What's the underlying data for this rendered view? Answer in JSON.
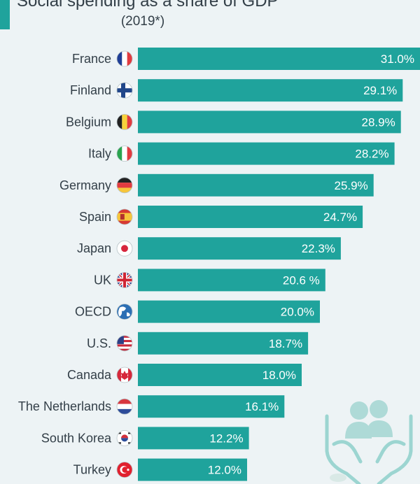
{
  "chart_data": {
    "type": "bar",
    "orientation": "horizontal",
    "title": "Social spending as a share of GDP",
    "subtitle": "(2019*)",
    "categories": [
      "France",
      "Finland",
      "Belgium",
      "Italy",
      "Germany",
      "Spain",
      "Japan",
      "UK",
      "OECD",
      "U.S.",
      "Canada",
      "The Netherlands",
      "South Korea",
      "Turkey"
    ],
    "values": [
      31.0,
      29.1,
      28.9,
      28.2,
      25.9,
      24.7,
      22.3,
      20.6,
      20.0,
      18.7,
      18.0,
      16.1,
      12.2,
      12.0
    ],
    "value_labels": [
      "31.0%",
      "29.1%",
      "28.9%",
      "28.2%",
      "25.9%",
      "24.7%",
      "22.3%",
      "20.6 %",
      "20.0%",
      "18.7%",
      "18.0%",
      "16.1%",
      "12.2%",
      "12.0%"
    ],
    "flag_icons": [
      "france-flag-icon",
      "finland-flag-icon",
      "belgium-flag-icon",
      "italy-flag-icon",
      "germany-flag-icon",
      "spain-flag-icon",
      "japan-flag-icon",
      "uk-flag-icon",
      "globe-icon",
      "usa-flag-icon",
      "canada-flag-icon",
      "netherlands-flag-icon",
      "south-korea-flag-icon",
      "turkey-flag-icon"
    ],
    "xlim": [
      0,
      31.0
    ],
    "grid": false,
    "legend": "none",
    "colors": {
      "bar": "#1fa39c",
      "label_text": "#ffffff",
      "category_text": "#333f48",
      "background": "#edf3f5"
    }
  },
  "decoration": {
    "watermark_icon": "people-in-hands-icon"
  }
}
